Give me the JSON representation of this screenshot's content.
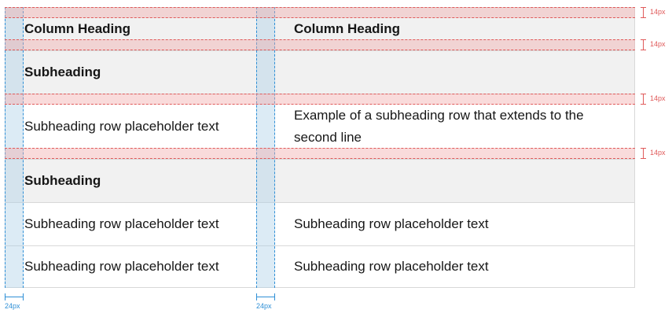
{
  "table": {
    "header": {
      "col1": "Column Heading",
      "col2": "Column Heading"
    },
    "rows": [
      {
        "type": "subheading",
        "col1": "Subheading",
        "col2": ""
      },
      {
        "type": "data",
        "col1": "Subheading row placeholder text",
        "col2": "Example of a subheading row that extends to the second line"
      },
      {
        "type": "subheading",
        "col1": "Subheading",
        "col2": ""
      },
      {
        "type": "data",
        "col1": "Subheading row placeholder text",
        "col2": "Subheading row placeholder text"
      },
      {
        "type": "data",
        "col1": "Subheading row placeholder text",
        "col2": "Subheading row placeholder text"
      }
    ]
  },
  "annotations": {
    "padding_label": "14px",
    "column_padding_label": "24px",
    "colors": {
      "padding_guide": "#e05a5a",
      "column_guide": "#2e8fd6",
      "header_bg": "#f1f1f1"
    }
  }
}
